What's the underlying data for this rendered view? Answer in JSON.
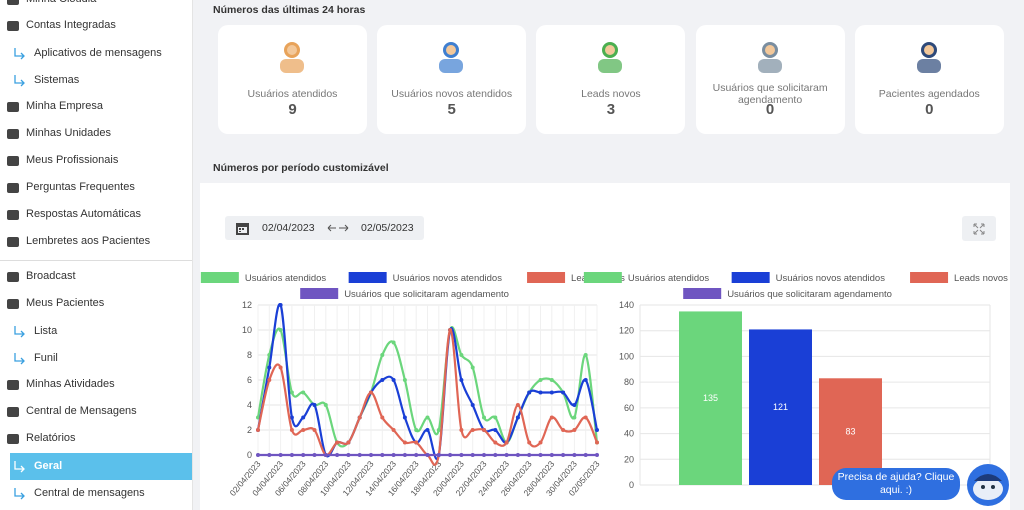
{
  "sidebar": {
    "items": [
      "Minha Cloudia",
      "Contas Integradas",
      "Aplicativos de mensagens",
      "Sistemas",
      "Minha Empresa",
      "Minhas Unidades",
      "Meus Profissionais",
      "Perguntas Frequentes",
      "Respostas Automáticas",
      "Lembretes aos Pacientes",
      "Broadcast",
      "Meus Pacientes",
      "Lista",
      "Funil",
      "Minhas Atividades",
      "Central de Mensagens",
      "Relatórios",
      "Geral",
      "Central de mensagens"
    ]
  },
  "stats": {
    "title": "Números das últimas 24 horas",
    "cards": [
      {
        "label": "Usuários atendidos",
        "value": 9
      },
      {
        "label": "Usuários novos atendidos",
        "value": 5
      },
      {
        "label": "Leads novos",
        "value": 3
      },
      {
        "label": "Usuários que solicitaram agendamento",
        "value": 0
      },
      {
        "label": "Pacientes agendados",
        "value": 0
      }
    ]
  },
  "period": {
    "title": "Números por período customizável",
    "date_start": "02/04/2023",
    "date_end": "02/05/2023"
  },
  "chart_data": [
    {
      "type": "line",
      "categories": [
        "02/04/2023",
        null,
        "04/04/2023",
        null,
        "06/04/2023",
        null,
        "08/04/2023",
        null,
        "10/04/2023",
        null,
        "12/04/2023",
        null,
        "14/04/2023",
        null,
        "16/04/2023",
        null,
        "18/04/2023",
        null,
        "20/04/2023",
        null,
        "22/04/2023",
        null,
        "24/04/2023",
        null,
        "26/04/2023",
        null,
        "28/04/2023",
        null,
        "30/04/2023",
        null,
        "02/05/2023"
      ],
      "series": [
        {
          "name": "Usuários atendidos",
          "color": "#6bd67c",
          "values": [
            3,
            8,
            10,
            5,
            5,
            4,
            4,
            1,
            1,
            3,
            5,
            8,
            9,
            6,
            2,
            3,
            2,
            10,
            8,
            7,
            3,
            3,
            1,
            3,
            5,
            6,
            6,
            5,
            3,
            8,
            1
          ]
        },
        {
          "name": "Usuários novos atendidos",
          "color": "#1a3fd6",
          "values": [
            2,
            7,
            12,
            3,
            3,
            4,
            0,
            1,
            1,
            3,
            5,
            6,
            6,
            3,
            1,
            2,
            0,
            10,
            6,
            4,
            2,
            2,
            1,
            3,
            5,
            5,
            5,
            5,
            4,
            6,
            2
          ]
        },
        {
          "name": "Leads novos",
          "color": "#e06655",
          "values": [
            2,
            6,
            7,
            2,
            2,
            2,
            0,
            1,
            1,
            3,
            5,
            3,
            2,
            1,
            1,
            0,
            0,
            10,
            2,
            2,
            2,
            1,
            1,
            4,
            1,
            1,
            3,
            2,
            2,
            3,
            1
          ]
        },
        {
          "name": "Usuários que solicitaram agendamento",
          "color": "#6f55c1",
          "values": [
            0,
            0,
            0,
            0,
            0,
            0,
            0,
            0,
            0,
            0,
            0,
            0,
            0,
            0,
            0,
            0,
            0,
            0,
            0,
            0,
            0,
            0,
            0,
            0,
            0,
            0,
            0,
            0,
            0,
            0,
            0
          ]
        }
      ],
      "ylim": [
        0,
        12
      ],
      "yticks": [
        0,
        2,
        4,
        6,
        8,
        10,
        12
      ],
      "grid": true,
      "legend": "top"
    },
    {
      "type": "bar",
      "series": [
        {
          "name": "Usuários atendidos",
          "color": "#6bd67c",
          "values": [
            135
          ]
        },
        {
          "name": "Usuários novos atendidos",
          "color": "#1a3fd6",
          "values": [
            121
          ]
        },
        {
          "name": "Leads novos",
          "color": "#e06655",
          "values": [
            83
          ]
        },
        {
          "name": "Usuários que solicitaram agendamento",
          "color": "#6f55c1",
          "values": [
            0
          ]
        }
      ],
      "ylim": [
        0,
        140
      ],
      "yticks": [
        0,
        20,
        40,
        60,
        80,
        100,
        120,
        140
      ],
      "grid": true,
      "legend": "top"
    }
  ],
  "help": {
    "text": "Precisa de ajuda? Clique aqui. :)"
  }
}
